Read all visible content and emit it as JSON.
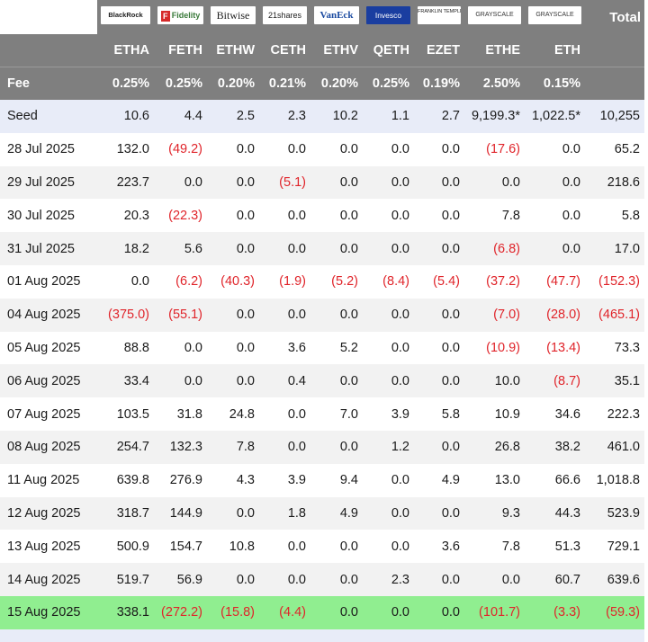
{
  "header": {
    "logos": [
      "BlackRock",
      "Fidelity",
      "Bitwise",
      "21shares",
      "VanEck",
      "Invesco",
      "FRANKLIN TEMPLETON",
      "GRAYSCALE",
      "GRAYSCALE"
    ],
    "fidelity_letter": "F",
    "total_label": "Total",
    "tickers": [
      "ETHA",
      "FETH",
      "ETHW",
      "CETH",
      "ETHV",
      "QETH",
      "EZET",
      "ETHE",
      "ETH"
    ],
    "fee_label": "Fee",
    "fees": [
      "0.25%",
      "0.25%",
      "0.20%",
      "0.21%",
      "0.20%",
      "0.25%",
      "0.19%",
      "2.50%",
      "0.15%"
    ]
  },
  "rows": [
    {
      "label": "Seed",
      "values": [
        "10.6",
        "4.4",
        "2.5",
        "2.3",
        "10.2",
        "1.1",
        "2.7",
        "9,199.3*",
        "1,022.5*",
        "10,255"
      ]
    },
    {
      "label": "28 Jul 2025",
      "values": [
        "132.0",
        "(49.2)",
        "0.0",
        "0.0",
        "0.0",
        "0.0",
        "0.0",
        "(17.6)",
        "0.0",
        "65.2"
      ]
    },
    {
      "label": "29 Jul 2025",
      "values": [
        "223.7",
        "0.0",
        "0.0",
        "(5.1)",
        "0.0",
        "0.0",
        "0.0",
        "0.0",
        "0.0",
        "218.6"
      ]
    },
    {
      "label": "30 Jul 2025",
      "values": [
        "20.3",
        "(22.3)",
        "0.0",
        "0.0",
        "0.0",
        "0.0",
        "0.0",
        "7.8",
        "0.0",
        "5.8"
      ]
    },
    {
      "label": "31 Jul 2025",
      "values": [
        "18.2",
        "5.6",
        "0.0",
        "0.0",
        "0.0",
        "0.0",
        "0.0",
        "(6.8)",
        "0.0",
        "17.0"
      ]
    },
    {
      "label": "01 Aug 2025",
      "values": [
        "0.0",
        "(6.2)",
        "(40.3)",
        "(1.9)",
        "(5.2)",
        "(8.4)",
        "(5.4)",
        "(37.2)",
        "(47.7)",
        "(152.3)"
      ]
    },
    {
      "label": "04 Aug 2025",
      "values": [
        "(375.0)",
        "(55.1)",
        "0.0",
        "0.0",
        "0.0",
        "0.0",
        "0.0",
        "(7.0)",
        "(28.0)",
        "(465.1)"
      ]
    },
    {
      "label": "05 Aug 2025",
      "values": [
        "88.8",
        "0.0",
        "0.0",
        "3.6",
        "5.2",
        "0.0",
        "0.0",
        "(10.9)",
        "(13.4)",
        "73.3"
      ]
    },
    {
      "label": "06 Aug 2025",
      "values": [
        "33.4",
        "0.0",
        "0.0",
        "0.4",
        "0.0",
        "0.0",
        "0.0",
        "10.0",
        "(8.7)",
        "35.1"
      ]
    },
    {
      "label": "07 Aug 2025",
      "values": [
        "103.5",
        "31.8",
        "24.8",
        "0.0",
        "7.0",
        "3.9",
        "5.8",
        "10.9",
        "34.6",
        "222.3"
      ]
    },
    {
      "label": "08 Aug 2025",
      "values": [
        "254.7",
        "132.3",
        "7.8",
        "0.0",
        "0.0",
        "1.2",
        "0.0",
        "26.8",
        "38.2",
        "461.0"
      ]
    },
    {
      "label": "11 Aug 2025",
      "values": [
        "639.8",
        "276.9",
        "4.3",
        "3.9",
        "9.4",
        "0.0",
        "4.9",
        "13.0",
        "66.6",
        "1,018.8"
      ]
    },
    {
      "label": "12 Aug 2025",
      "values": [
        "318.7",
        "144.9",
        "0.0",
        "1.8",
        "4.9",
        "0.0",
        "0.0",
        "9.3",
        "44.3",
        "523.9"
      ]
    },
    {
      "label": "13 Aug 2025",
      "values": [
        "500.9",
        "154.7",
        "10.8",
        "0.0",
        "0.0",
        "0.0",
        "3.6",
        "7.8",
        "51.3",
        "729.1"
      ]
    },
    {
      "label": "14 Aug 2025",
      "values": [
        "519.7",
        "56.9",
        "0.0",
        "0.0",
        "0.0",
        "2.3",
        "0.0",
        "0.0",
        "60.7",
        "639.6"
      ]
    },
    {
      "label": "15 Aug 2025",
      "values": [
        "338.1",
        "(272.2)",
        "(15.8)",
        "(4.4)",
        "0.0",
        "0.0",
        "0.0",
        "(101.7)",
        "(3.3)",
        "(59.3)"
      ]
    }
  ],
  "colors": {
    "header_bg": "#7f7f7f",
    "seed_bg": "#e8ecf8",
    "alt_bg": "#f2f2f2",
    "highlight_bg": "#90ee90",
    "negative": "#e0242a"
  }
}
